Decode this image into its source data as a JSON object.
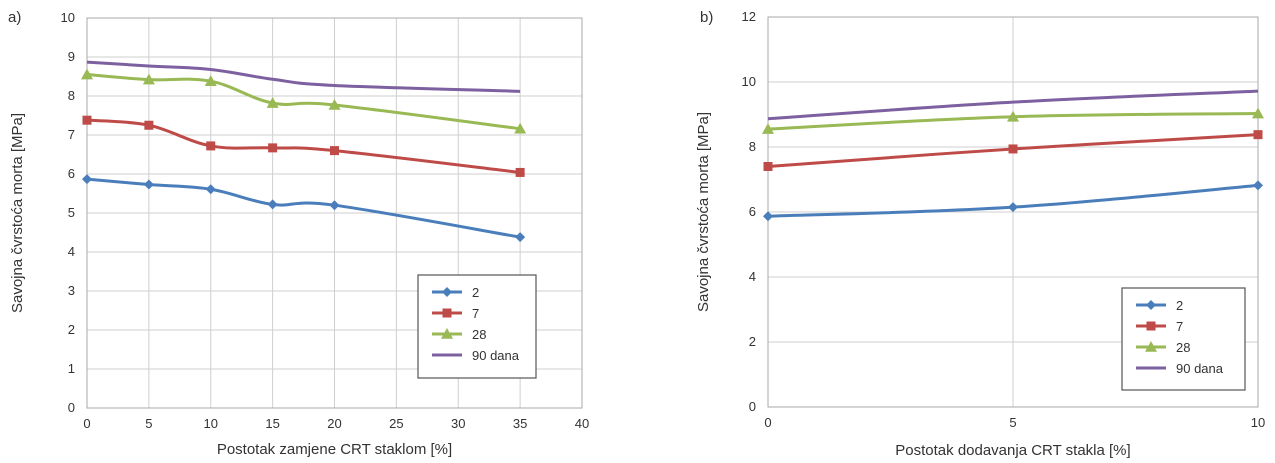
{
  "chart_data": [
    {
      "panel_label": "a)",
      "type": "line",
      "xlabel": "Postotak zamjene CRT staklom [%]",
      "ylabel": "Savojna čvrstoća morta [MPa]",
      "xlim": [
        0,
        40
      ],
      "ylim": [
        0,
        10
      ],
      "xticks": [
        "0",
        "5",
        "10",
        "15",
        "20",
        "25",
        "30",
        "35",
        "40"
      ],
      "yticks": [
        "0",
        "1",
        "2",
        "3",
        "4",
        "5",
        "6",
        "7",
        "8",
        "9",
        "10"
      ],
      "grid": true,
      "legend_position": "bottom-right",
      "x": [
        0,
        5,
        10,
        15,
        20,
        35
      ],
      "series": [
        {
          "name": "2",
          "color": "#4a7ebb",
          "marker": "diamond",
          "values": [
            5.87,
            5.73,
            5.61,
            5.22,
            5.2,
            4.38
          ]
        },
        {
          "name": "7",
          "color": "#be4b48",
          "marker": "square",
          "values": [
            7.38,
            7.25,
            6.72,
            6.67,
            6.6,
            6.04
          ]
        },
        {
          "name": "28",
          "color": "#98b954",
          "marker": "triangle",
          "values": [
            8.55,
            8.42,
            8.38,
            7.82,
            7.77,
            7.16
          ]
        },
        {
          "name": "90 dana",
          "color": "#7d60a0",
          "marker": "none",
          "values": [
            8.87,
            8.77,
            8.68,
            8.43,
            8.27,
            8.12
          ]
        }
      ]
    },
    {
      "panel_label": "b)",
      "type": "line",
      "xlabel": "Postotak dodavanja CRT stakla [%]",
      "ylabel": "Savojna čvrstoća morta [MPa]",
      "xlim": [
        0,
        10
      ],
      "ylim": [
        0,
        12
      ],
      "xticks": [
        "0",
        "5",
        "10"
      ],
      "yticks": [
        "0",
        "2",
        "4",
        "6",
        "8",
        "10",
        "12"
      ],
      "grid": true,
      "legend_position": "bottom-right",
      "x": [
        0,
        5,
        10
      ],
      "series": [
        {
          "name": "2",
          "color": "#4a7ebb",
          "marker": "diamond",
          "values": [
            5.87,
            6.15,
            6.82
          ]
        },
        {
          "name": "7",
          "color": "#be4b48",
          "marker": "square",
          "values": [
            7.4,
            7.94,
            8.38
          ]
        },
        {
          "name": "28",
          "color": "#98b954",
          "marker": "triangle",
          "values": [
            8.55,
            8.93,
            9.03
          ]
        },
        {
          "name": "90 dana",
          "color": "#7d60a0",
          "marker": "none",
          "values": [
            8.87,
            9.38,
            9.72
          ]
        }
      ]
    }
  ]
}
